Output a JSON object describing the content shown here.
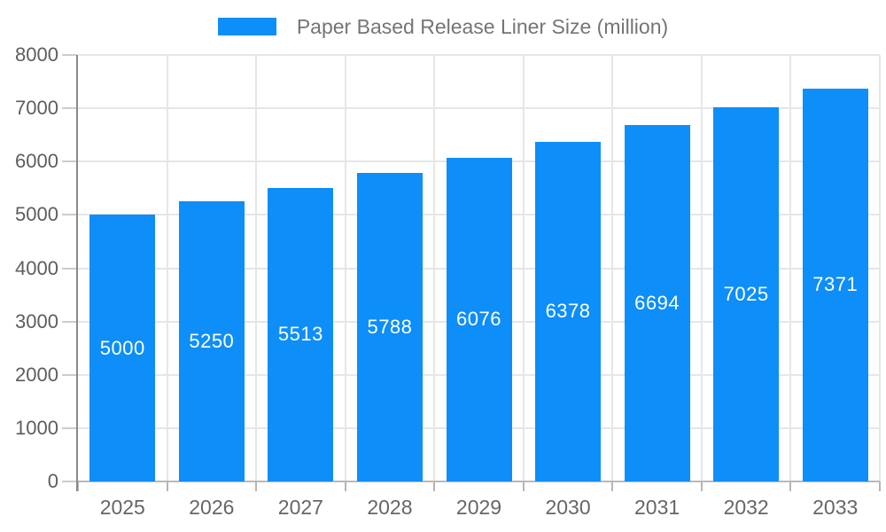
{
  "chart_data": {
    "type": "bar",
    "title": "Paper Based Release Liner Size (million)",
    "categories": [
      "2025",
      "2026",
      "2027",
      "2028",
      "2029",
      "2030",
      "2031",
      "2032",
      "2033"
    ],
    "values": [
      5000,
      5250,
      5513,
      5788,
      6076,
      6378,
      6694,
      7025,
      7371
    ],
    "xlabel": "",
    "ylabel": "",
    "ylim": [
      0,
      8000
    ],
    "ytick_step": 1000,
    "grid": true,
    "legend_position": "top-center",
    "value_labels": "inside-center",
    "colors": {
      "bar": "#0d8ef8",
      "grid": "#e6e6e6",
      "axis_line": "#8a8a8a",
      "zero_line": "#b9b9b9",
      "tick": "#b5b5b5",
      "axis_text": "#5d5d5d",
      "legend_text": "#757575",
      "value_text": "#ffffff",
      "background": "#ffffff"
    }
  }
}
